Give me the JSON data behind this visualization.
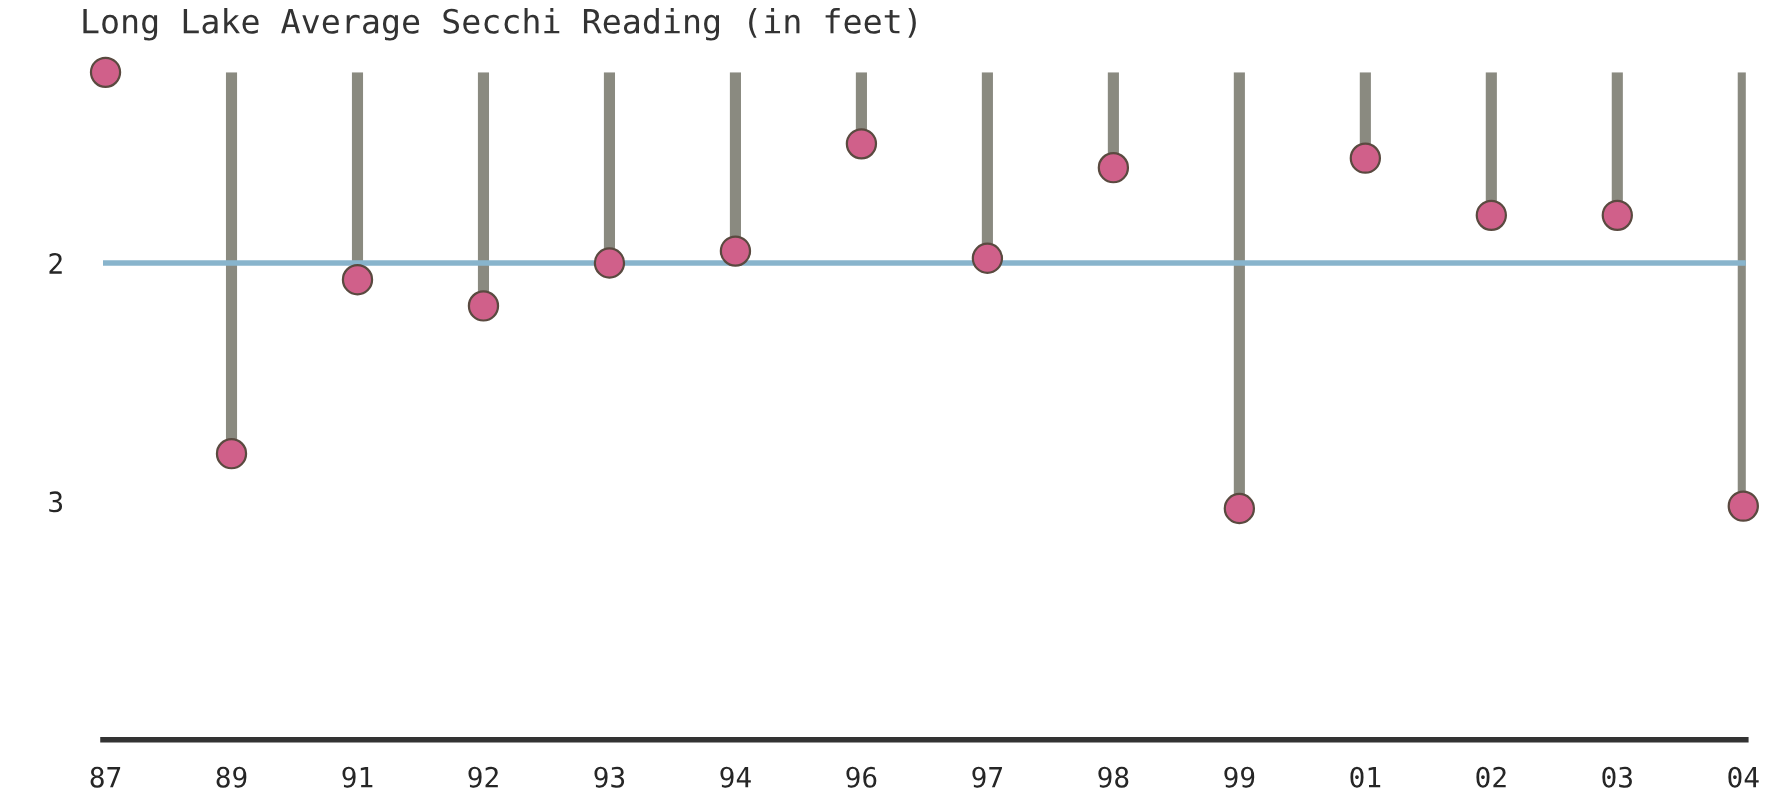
{
  "chart_data": {
    "type": "lollipop",
    "title": "Long Lake Average Secchi Reading (in feet)",
    "categories": [
      "87",
      "89",
      "91",
      "92",
      "93",
      "94",
      "96",
      "97",
      "98",
      "99",
      "01",
      "02",
      "03",
      "04"
    ],
    "series": [
      {
        "color": "#d0608a",
        "values": [
          1.2,
          2.8,
          2.07,
          2.18,
          2.0,
          1.95,
          1.5,
          1.98,
          1.6,
          3.03,
          1.56,
          1.8,
          1.8,
          3.02
        ]
      }
    ],
    "ylim": [
      4.0,
      1.2
    ],
    "yticks": [
      2,
      3
    ],
    "ref_lines": [
      {
        "axis": "y",
        "value": 2,
        "color": "#88b4cc"
      }
    ],
    "marker": "circle",
    "grid": false,
    "legend": false
  }
}
